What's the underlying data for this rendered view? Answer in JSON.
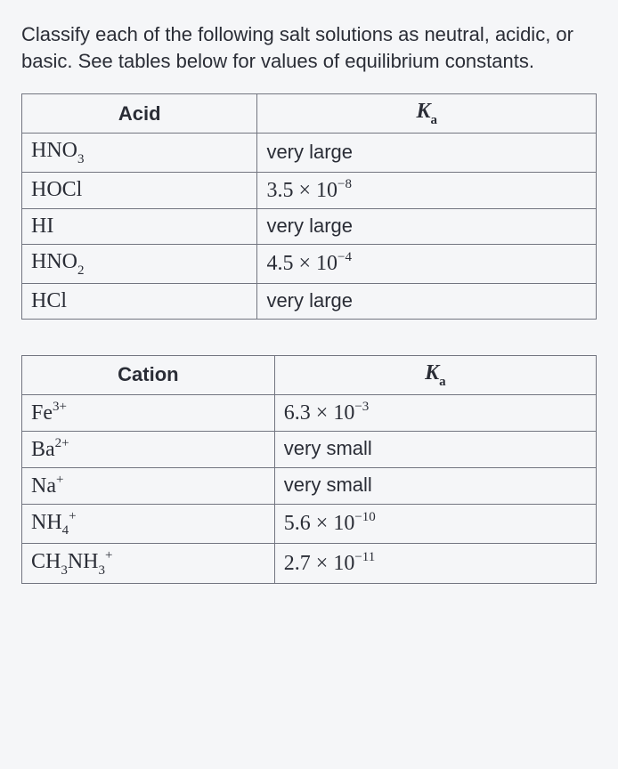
{
  "prompt": "Classify each of the following salt solutions as neutral, acidic, or basic. See tables below for values of equilibrium constants.",
  "table1": {
    "col_widths": [
      "41%",
      "59%"
    ],
    "headers": {
      "col1": "Acid",
      "col2_html": "<span class='ka-header'>K<span class='sub'>a</span></span>"
    },
    "rows": [
      {
        "acid_html": "HNO<span class='sub'>3</span>",
        "ka_html": "<span class='sans-val'>very large</span>"
      },
      {
        "acid_html": "HOCl",
        "ka_html": "3.5 × 10<span class='sup'>−8</span>"
      },
      {
        "acid_html": "HI",
        "ka_html": "<span class='sans-val'>very large</span>"
      },
      {
        "acid_html": "HNO<span class='sub'>2</span>",
        "ka_html": "4.5 × 10<span class='sup'>−4</span>"
      },
      {
        "acid_html": "HCl",
        "ka_html": "<span class='sans-val'>very large</span>"
      }
    ]
  },
  "table2": {
    "col_widths": [
      "44%",
      "56%"
    ],
    "headers": {
      "col1": "Cation",
      "col2_html": "<span class='ka-header'>K<span class='sub'>a</span></span>"
    },
    "rows": [
      {
        "cation_html": "Fe<span class='sup'>3+</span>",
        "ka_html": "6.3 × 10<span class='sup'>−3</span>"
      },
      {
        "cation_html": "Ba<span class='sup'>2+</span>",
        "ka_html": "<span class='sans-val'>very small</span>"
      },
      {
        "cation_html": "Na<span class='sup'>+</span>",
        "ka_html": "<span class='sans-val'>very small</span>"
      },
      {
        "cation_html": "NH<span class='sub'>4</span><span class='sup'>+</span>",
        "ka_html": "5.6 × 10<span class='sup'>−10</span>"
      },
      {
        "cation_html": "CH<span class='sub'>3</span>NH<span class='sub'>3</span><span class='sup'>+</span>",
        "ka_html": "2.7 × 10<span class='sup'>−11</span>"
      }
    ]
  }
}
